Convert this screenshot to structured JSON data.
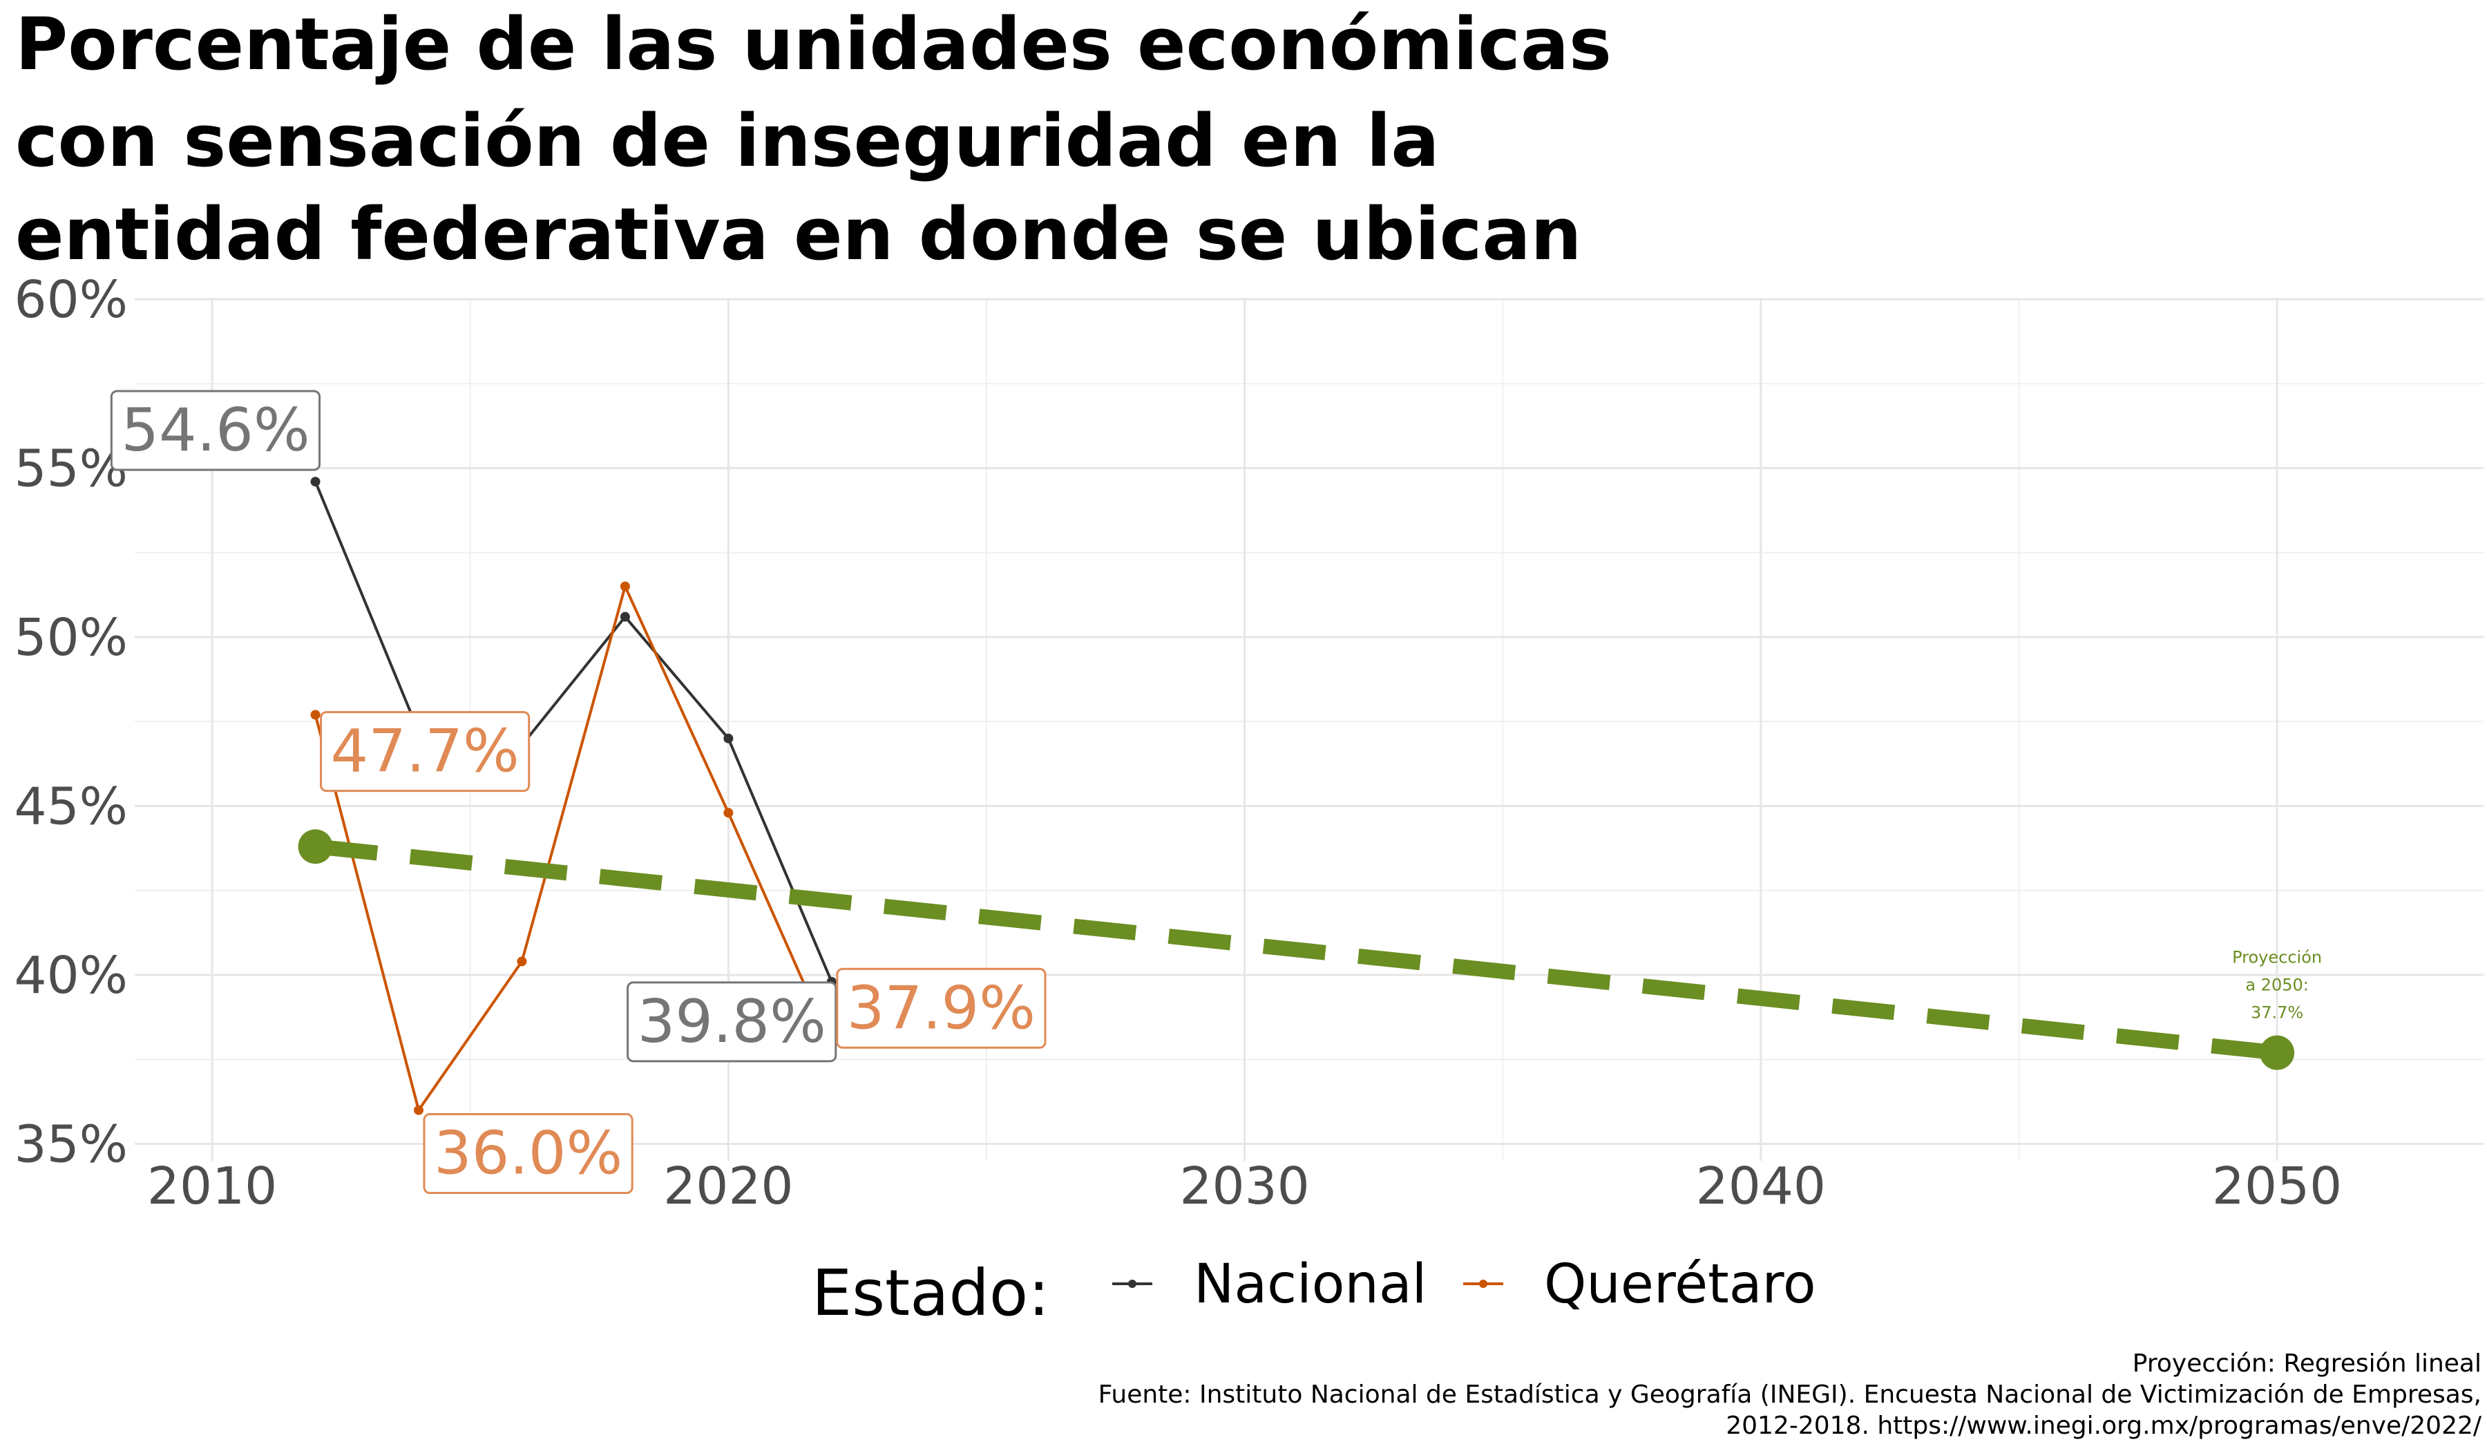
{
  "chart_data": {
    "type": "line",
    "title_lines": [
      "Porcentaje de las unidades económicas",
      "con sensación de inseguridad en la",
      "entidad federativa en donde se ubican"
    ],
    "xlim": [
      2008.5,
      2054
    ],
    "ylim": [
      34.5,
      60
    ],
    "x_ticks": [
      {
        "value": 2010,
        "label": "2010"
      },
      {
        "value": 2020,
        "label": "2020"
      },
      {
        "value": 2030,
        "label": "2030"
      },
      {
        "value": 2040,
        "label": "2040"
      },
      {
        "value": 2050,
        "label": "2050"
      }
    ],
    "y_ticks": [
      {
        "value": 35,
        "label": "35%"
      },
      {
        "value": 40,
        "label": "40%"
      },
      {
        "value": 45,
        "label": "45%"
      },
      {
        "value": 50,
        "label": "50%"
      },
      {
        "value": 55,
        "label": "55%"
      },
      {
        "value": 60,
        "label": "60%"
      }
    ],
    "grid": true,
    "series": [
      {
        "name": "Nacional",
        "color": "#333333",
        "label_fill": "#757575",
        "x": [
          2012,
          2014,
          2016,
          2018,
          2020,
          2022
        ],
        "y": [
          54.6,
          47.2,
          46.8,
          50.6,
          47.0,
          39.8
        ]
      },
      {
        "name": "Querétaro",
        "color": "#cc5500",
        "label_fill": "#e08a55",
        "x": [
          2012,
          2014,
          2016,
          2018,
          2020,
          2022
        ],
        "y": [
          47.7,
          36.0,
          40.4,
          51.5,
          44.8,
          37.9
        ]
      }
    ],
    "data_labels": [
      {
        "series": 0,
        "x": 2012,
        "y": 54.6,
        "text": "54.6%",
        "anchor": "end",
        "dy": 1.4
      },
      {
        "series": 0,
        "x": 2022,
        "y": 39.8,
        "text": "39.8%",
        "anchor": "end",
        "dy": -1.3
      },
      {
        "series": 1,
        "x": 2012,
        "y": 47.7,
        "text": "47.7%",
        "anchor": "start",
        "dy": -1.2
      },
      {
        "series": 1,
        "x": 2014,
        "y": 36.0,
        "text": "36.0%",
        "anchor": "start",
        "dy": -1.4
      },
      {
        "series": 1,
        "x": 2022,
        "y": 37.9,
        "text": "37.9%",
        "anchor": "start",
        "dy": 1.0
      }
    ],
    "projection": {
      "method": "Regresión lineal",
      "color": "#6b8e23",
      "start": {
        "x": 2012,
        "y": 43.8
      },
      "end": {
        "x": 2050,
        "y": 37.7
      },
      "annotation_lines": [
        "Proyección",
        "a 2050:",
        "37.7%"
      ]
    },
    "legend": {
      "position": "bottom",
      "title": "Estado:",
      "items": [
        "Nacional",
        "Querétaro"
      ]
    },
    "caption_lines": [
      "Proyección: Regresión lineal",
      "Fuente: Instituto Nacional de Estadística y Geografía (INEGI). Encuesta Nacional de Victimización de Empresas,",
      "2012-2018. https://www.inegi.org.mx/programas/enve/2022/"
    ]
  }
}
